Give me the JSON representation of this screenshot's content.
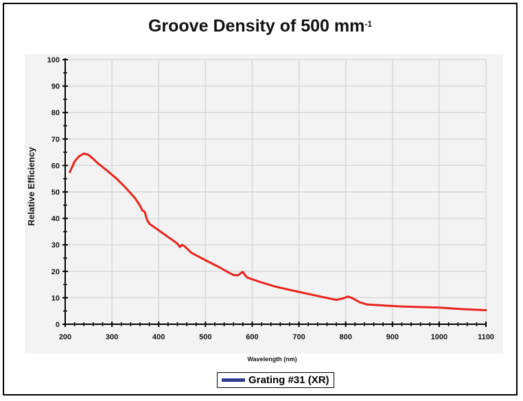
{
  "chart_data": {
    "type": "line",
    "title": "Groove Density of 500 mm",
    "title_sup": "-1",
    "xlabel": "Wavelength (nm)",
    "ylabel": "Relative Efficiency",
    "xlim": [
      200,
      1100
    ],
    "ylim": [
      0,
      100
    ],
    "xticks": [
      "200",
      "300",
      "400",
      "500",
      "600",
      "700",
      "800",
      "900",
      "1000",
      "1100"
    ],
    "yticks": [
      "0",
      "10",
      "20",
      "30",
      "40",
      "50",
      "60",
      "70",
      "80",
      "90",
      "100"
    ],
    "grid": true,
    "legend_position": "bottom",
    "series": [
      {
        "name": "Grating #31 (XR)",
        "color": "#e8231b",
        "legend_color": "#2b3b8f",
        "points": [
          [
            210,
            57.5
          ],
          [
            220,
            61.5
          ],
          [
            230,
            63.5
          ],
          [
            240,
            64.5
          ],
          [
            250,
            64
          ],
          [
            260,
            62.5
          ],
          [
            270,
            60.8
          ],
          [
            290,
            58
          ],
          [
            310,
            55
          ],
          [
            330,
            51.5
          ],
          [
            350,
            47.5
          ],
          [
            360,
            44.8
          ],
          [
            365,
            43
          ],
          [
            370,
            42.5
          ],
          [
            375,
            39.5
          ],
          [
            380,
            38
          ],
          [
            400,
            35.5
          ],
          [
            420,
            33
          ],
          [
            440,
            30.5
          ],
          [
            445,
            29.2
          ],
          [
            450,
            30
          ],
          [
            455,
            29.5
          ],
          [
            470,
            27
          ],
          [
            500,
            24.2
          ],
          [
            530,
            21.5
          ],
          [
            550,
            19.5
          ],
          [
            560,
            18.6
          ],
          [
            570,
            18.5
          ],
          [
            575,
            19.2
          ],
          [
            580,
            19.8
          ],
          [
            585,
            18.5
          ],
          [
            590,
            17.6
          ],
          [
            620,
            15.8
          ],
          [
            650,
            14.2
          ],
          [
            700,
            12.2
          ],
          [
            750,
            10.3
          ],
          [
            780,
            9.2
          ],
          [
            795,
            9.8
          ],
          [
            805,
            10.5
          ],
          [
            815,
            9.8
          ],
          [
            830,
            8.3
          ],
          [
            845,
            7.5
          ],
          [
            880,
            7.1
          ],
          [
            920,
            6.7
          ],
          [
            1000,
            6.3
          ],
          [
            1050,
            5.7
          ],
          [
            1100,
            5.3
          ]
        ]
      }
    ]
  }
}
